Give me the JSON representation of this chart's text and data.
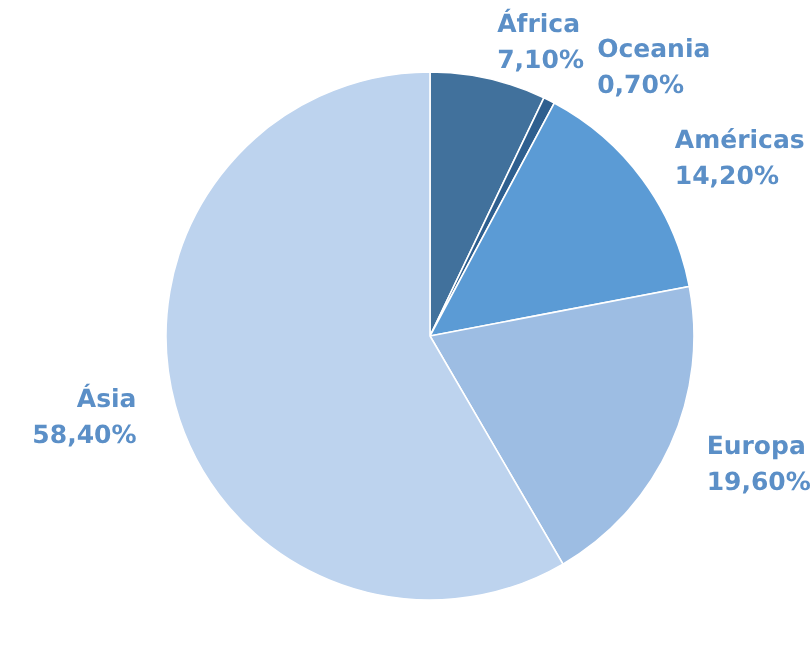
{
  "chart_data": {
    "type": "pie",
    "categories": [
      "África",
      "Oceania",
      "Américas",
      "Europa",
      "Ásia"
    ],
    "values": [
      7.1,
      0.7,
      14.2,
      19.6,
      58.4
    ],
    "colors": [
      "#41719c",
      "#2e5f8f",
      "#5b9bd5",
      "#9dbde3",
      "#bdd3ee"
    ],
    "value_labels": [
      "7,10%",
      "0,70%",
      "14,20%",
      "19,60%",
      "58,40%"
    ]
  }
}
